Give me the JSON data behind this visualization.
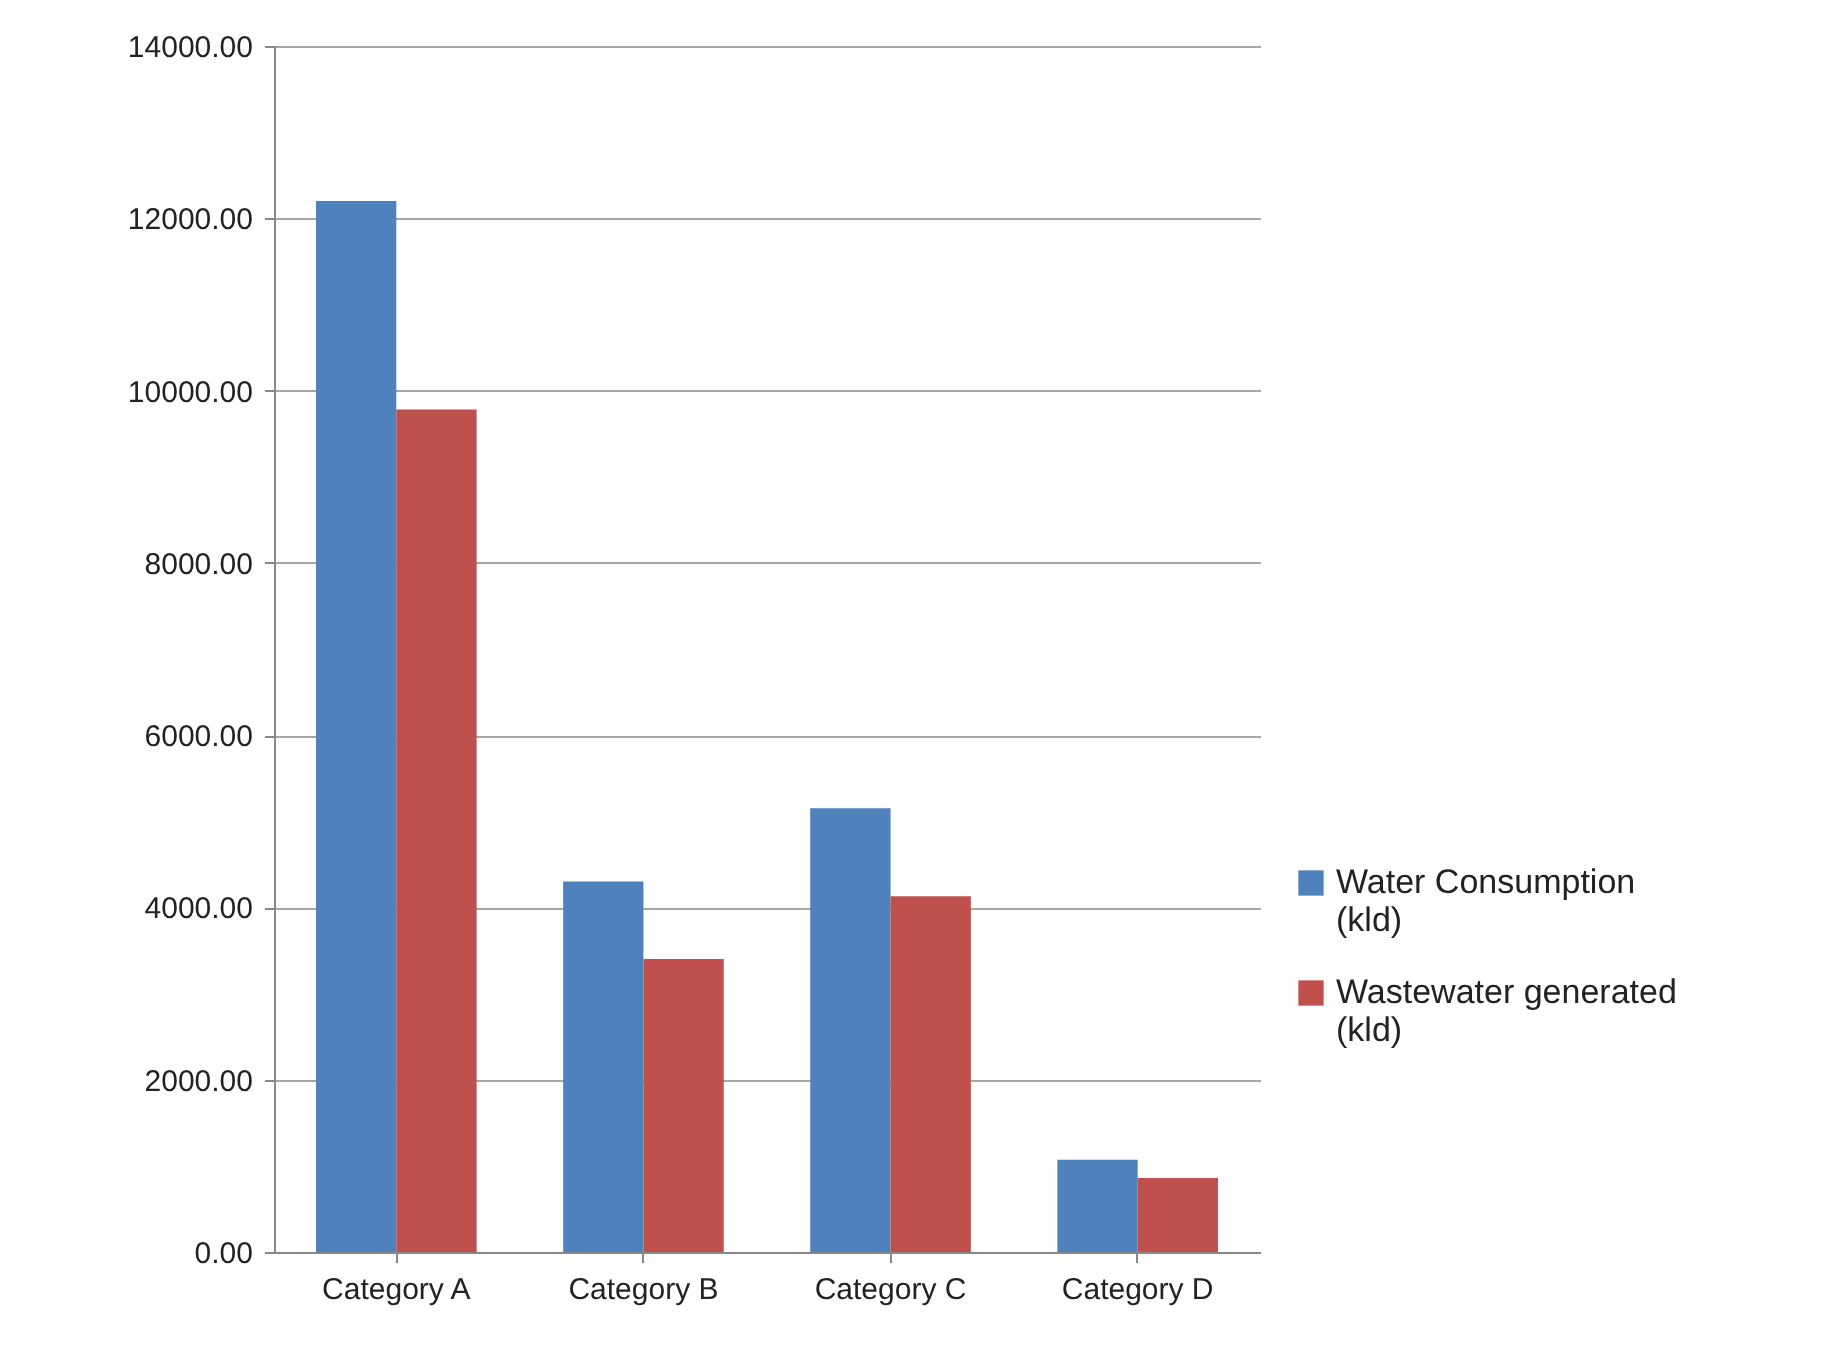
{
  "chart_data": {
    "type": "bar",
    "categories": [
      "Category A",
      "Category B",
      "Category C",
      "Category D"
    ],
    "series": [
      {
        "name": "Water Consumption (kld)",
        "color": "#4f81bd",
        "values": [
          12200,
          4300,
          5150,
          1070
        ]
      },
      {
        "name": "Wastewater generated (kld)",
        "color": "#c0504d",
        "values": [
          9780,
          3400,
          4130,
          860
        ]
      }
    ],
    "ylim": [
      0,
      14000
    ],
    "yticks": [
      {
        "value": 0,
        "label": "0.00"
      },
      {
        "value": 2000,
        "label": "2000.00"
      },
      {
        "value": 4000,
        "label": "4000.00"
      },
      {
        "value": 6000,
        "label": "6000.00"
      },
      {
        "value": 8000,
        "label": "8000.00"
      },
      {
        "value": 10000,
        "label": "10000.00"
      },
      {
        "value": 12000,
        "label": "12000.00"
      },
      {
        "value": 14000,
        "label": "14000.00"
      }
    ],
    "grid": "y",
    "legend": "right"
  }
}
